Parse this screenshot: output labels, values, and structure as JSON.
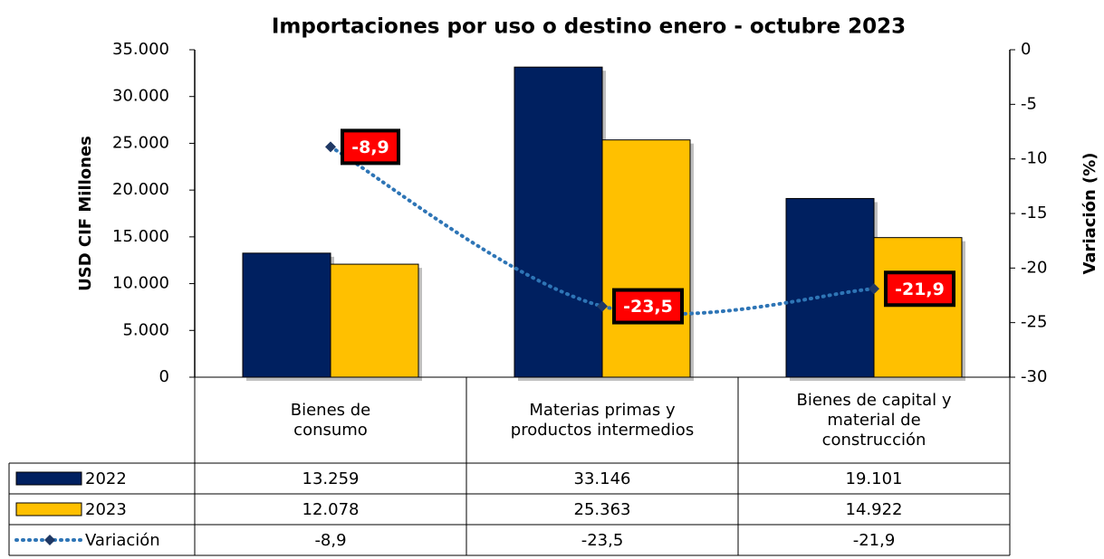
{
  "chart_data": {
    "type": "bar",
    "title": "Importaciones por uso o destino enero - octubre 2023",
    "y_label": "USD CIF Millones",
    "y2_label": "Variación (%)",
    "categories": [
      "Bienes de consumo",
      "Materias primas y productos intermedios",
      "Bienes de capital y material de construcción"
    ],
    "series": [
      {
        "name": "2022",
        "type": "bar",
        "color": "#002060",
        "values": [
          13259,
          33146,
          19101
        ],
        "value_labels": [
          "13.259",
          "33.146",
          "19.101"
        ]
      },
      {
        "name": "2023",
        "type": "bar",
        "color": "#ffc000",
        "values": [
          12078,
          25363,
          14922
        ],
        "value_labels": [
          "12.078",
          "25.363",
          "14.922"
        ]
      },
      {
        "name": "Variación",
        "type": "line",
        "axis": "y2",
        "color": "#2e75b6",
        "marker_color": "#1f3864",
        "values": [
          -8.9,
          -23.5,
          -21.9
        ],
        "value_labels": [
          "-8,9",
          "-23,5",
          "-21,9"
        ]
      }
    ],
    "ylim": [
      0,
      35000
    ],
    "yticks": [
      0,
      {
        "value": 5000,
        "label": "5.000"
      },
      {
        "value": 10000,
        "label": "10.000"
      },
      {
        "value": 15000,
        "label": "15.000"
      },
      {
        "value": 20000,
        "label": "20.000"
      },
      {
        "value": 25000,
        "label": "25.000"
      },
      {
        "value": 30000,
        "label": "30.000"
      },
      {
        "value": 35000,
        "label": "35.000"
      }
    ],
    "y2lim": [
      -30,
      0
    ],
    "y2ticks": [
      -30,
      -25,
      -20,
      -15,
      -10,
      -5,
      0
    ],
    "data_label_color": "#ff0000"
  }
}
